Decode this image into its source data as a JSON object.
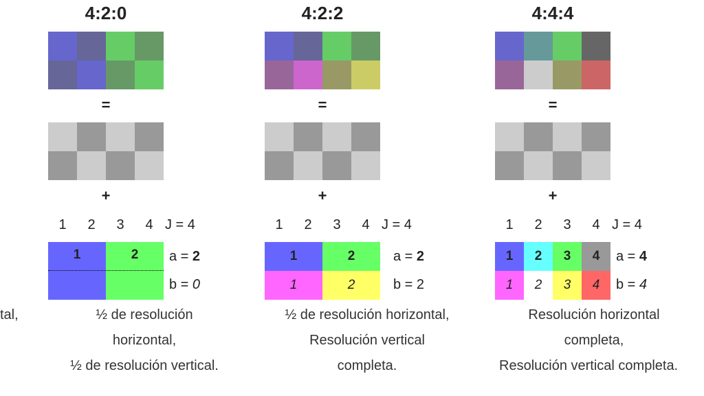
{
  "left_fragment": "tal,",
  "symbols": {
    "equals": "=",
    "plus": "+"
  },
  "colors": {
    "blue": "#6666CC",
    "blue_dark": "#666699",
    "green": "#66CC66",
    "green_dark": "#669966",
    "gray_light": "#CCCCCC",
    "gray_dark": "#999999",
    "chroma_blue": "#6666FF",
    "chroma_green": "#66FF66",
    "chroma_magenta": "#FF66FF",
    "chroma_yellow": "#FFFF66",
    "chroma_cyan": "#66FFFF",
    "chroma_gray": "#999999",
    "chroma_red": "#FF6666"
  },
  "panels": [
    {
      "title": "4:2:0",
      "top_colors": [
        "#6666CC",
        "#666699",
        "#66CC66",
        "#669966",
        "#666699",
        "#6666CC",
        "#669966",
        "#66CC66"
      ],
      "gray_colors": [
        "#CCCCCC",
        "#999999",
        "#CCCCCC",
        "#999999",
        "#999999",
        "#CCCCCC",
        "#999999",
        "#CCCCCC"
      ],
      "j_numbers": [
        "1",
        "2",
        "3",
        "4"
      ],
      "j_label": "J = 4",
      "chroma_top": [
        "1",
        "2"
      ],
      "chroma_bottom": [],
      "a_label": "a = ",
      "a_value": "2",
      "b_label": "b = ",
      "b_value": "0",
      "desc": [
        "½ de resolución",
        "horizontal,",
        "½ de resolución vertical."
      ]
    },
    {
      "title": "4:2:2",
      "top_colors": [
        "#6666CC",
        "#666699",
        "#66CC66",
        "#669966",
        "#996699",
        "#CC66CC",
        "#999966",
        "#CCCC66"
      ],
      "gray_colors": [
        "#CCCCCC",
        "#999999",
        "#CCCCCC",
        "#999999",
        "#999999",
        "#CCCCCC",
        "#999999",
        "#CCCCCC"
      ],
      "j_numbers": [
        "1",
        "2",
        "3",
        "4"
      ],
      "j_label": "J = 4",
      "chroma_top": [
        "1",
        "2"
      ],
      "chroma_bottom": [
        "1",
        "2"
      ],
      "a_label": "a = ",
      "a_value": "2",
      "b_label": "b = ",
      "b_value": "2",
      "desc": [
        "½ de resolución horizontal,",
        "Resolución vertical",
        "completa."
      ]
    },
    {
      "title": "4:4:4",
      "top_colors": [
        "#6666CC",
        "#669999",
        "#66CC66",
        "#666666",
        "#996699",
        "#CCCCCC",
        "#999966",
        "#CC6666"
      ],
      "gray_colors": [
        "#CCCCCC",
        "#999999",
        "#CCCCCC",
        "#999999",
        "#999999",
        "#CCCCCC",
        "#999999",
        "#CCCCCC"
      ],
      "j_numbers": [
        "1",
        "2",
        "3",
        "4"
      ],
      "j_label": "J = 4",
      "chroma_top": [
        "1",
        "2",
        "3",
        "4"
      ],
      "chroma_bottom": [
        "1",
        "2",
        "3",
        "4"
      ],
      "a_label": "a = ",
      "a_value": "4",
      "b_label": "b = ",
      "b_value": "4",
      "desc": [
        "Resolución horizontal",
        "completa,",
        "Resolución vertical completa."
      ]
    }
  ]
}
